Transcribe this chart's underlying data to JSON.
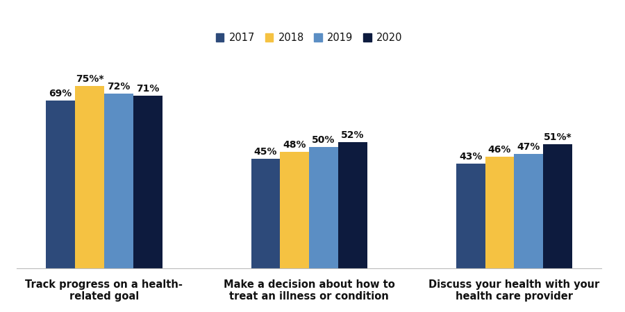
{
  "categories": [
    "Track progress on a health-\nrelated goal",
    "Make a decision about how to\ntreat an illness or condition",
    "Discuss your health with your\nhealth care provider"
  ],
  "years": [
    "2017",
    "2018",
    "2019",
    "2020"
  ],
  "values": [
    [
      69,
      75,
      72,
      71
    ],
    [
      45,
      48,
      50,
      52
    ],
    [
      43,
      46,
      47,
      51
    ]
  ],
  "labels": [
    [
      "69%",
      "75%*",
      "72%",
      "71%"
    ],
    [
      "45%",
      "48%",
      "50%",
      "52%"
    ],
    [
      "43%",
      "46%",
      "47%",
      "51%*"
    ]
  ],
  "colors": [
    "#2d4a7a",
    "#f5c242",
    "#5b8ec4",
    "#0d1b3e"
  ],
  "bar_width": 0.16,
  "ylim": [
    0,
    90
  ],
  "background_color": "#ffffff",
  "label_fontsize": 10,
  "legend_fontsize": 10.5,
  "xtick_fontsize": 10.5,
  "group_positions": [
    0.42,
    1.55,
    2.68
  ]
}
